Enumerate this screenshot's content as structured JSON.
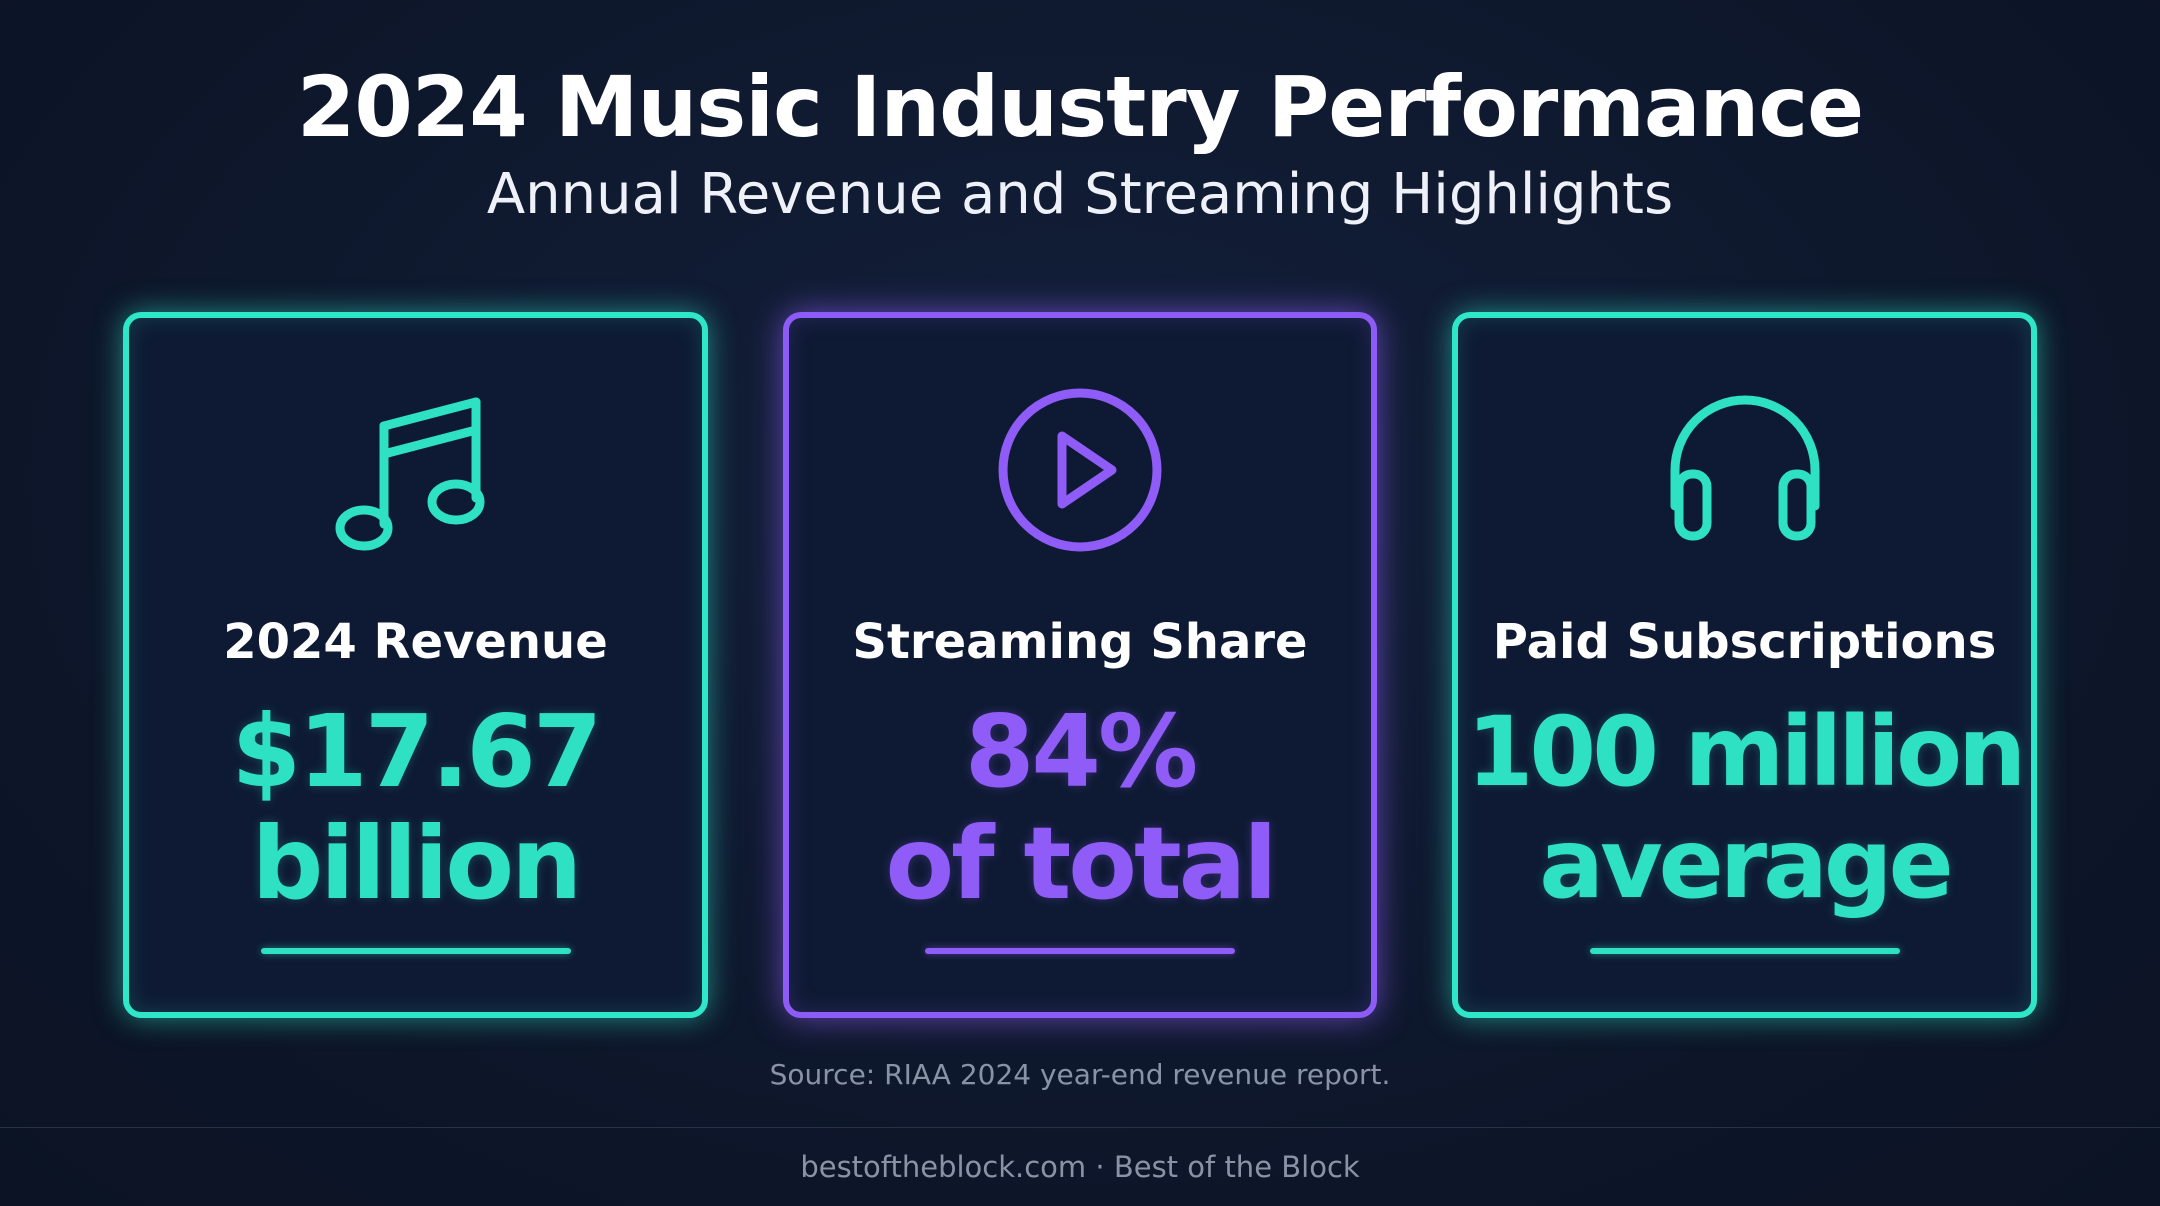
{
  "header": {
    "title": "2024 Music Industry Performance",
    "subtitle": "Annual Revenue and Streaming Highlights"
  },
  "cards": [
    {
      "icon": "music-note-icon",
      "label": "2024 Revenue",
      "value_line1": "$17.67",
      "value_line2": "billion",
      "accent": "#2fe1c3"
    },
    {
      "icon": "play-circle-icon",
      "label": "Streaming Share",
      "value_line1": "84%",
      "value_line2": "of total",
      "accent": "#8f5cf7"
    },
    {
      "icon": "headphones-icon",
      "label": "Paid Subscriptions",
      "value_line1": "100 million",
      "value_line2": "average",
      "accent": "#2fe1c3"
    }
  ],
  "source": "Source: RIAA 2024 year-end revenue report.",
  "footer": "bestoftheblock.com · Best of the Block"
}
